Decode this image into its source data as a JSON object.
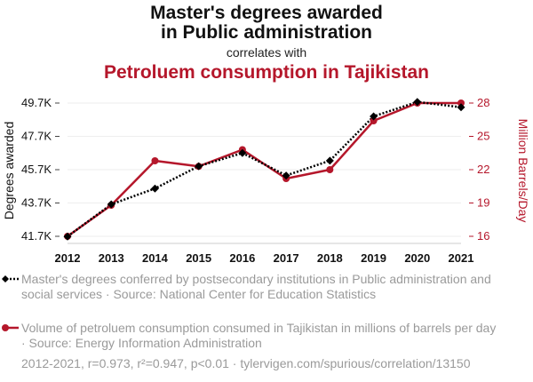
{
  "chart_data": {
    "type": "line",
    "title": "Master's degrees awarded in Public administration",
    "title_lines": [
      "Master's degrees awarded",
      "in Public administration"
    ],
    "connector": "correlates with",
    "subtitle": "Petroluem consumption in Tajikistan",
    "x": [
      "2012",
      "2013",
      "2014",
      "2015",
      "2016",
      "2017",
      "2018",
      "2019",
      "2020",
      "2021"
    ],
    "ylabel_left": "Degrees awarded",
    "ylabel_right": "Million Barrels/Day",
    "yticks_left": [
      "41.7K",
      "43.7K",
      "45.7K",
      "47.7K",
      "49.7K"
    ],
    "yticks_left_values": [
      41700,
      43700,
      45700,
      47700,
      49700
    ],
    "yticks_right": [
      "16",
      "19",
      "22",
      "25",
      "28"
    ],
    "yticks_right_values": [
      16,
      19,
      22,
      25,
      28
    ],
    "ylim_left": [
      41500,
      49900
    ],
    "ylim_right": [
      15.8,
      28.2
    ],
    "series": [
      {
        "name": "Master's degrees conferred by postsecondary institutions in Public administration and social services · Source: National Center for Education Statistics",
        "axis": "left",
        "color": "#000000",
        "style": "dotted",
        "marker": "diamond",
        "values": [
          41690,
          43620,
          44570,
          45910,
          46700,
          45350,
          46240,
          48900,
          49770,
          49450
        ]
      },
      {
        "name": "Volume of petroluem consumption consumed in Tajikistan in millions of barrels per day · Source: Energy Information Administration",
        "axis": "right",
        "color": "#b5172b",
        "style": "solid",
        "marker": "circle",
        "values": [
          16.0,
          18.8,
          22.8,
          22.3,
          23.8,
          21.2,
          22.0,
          26.4,
          28.0,
          28.0
        ]
      }
    ],
    "footer": "2012-2021, r=0.973, r²=0.947, p<0.01 · tylervigen.com/spurious/correlation/13150",
    "grid": true,
    "legend_position": "bottom"
  }
}
